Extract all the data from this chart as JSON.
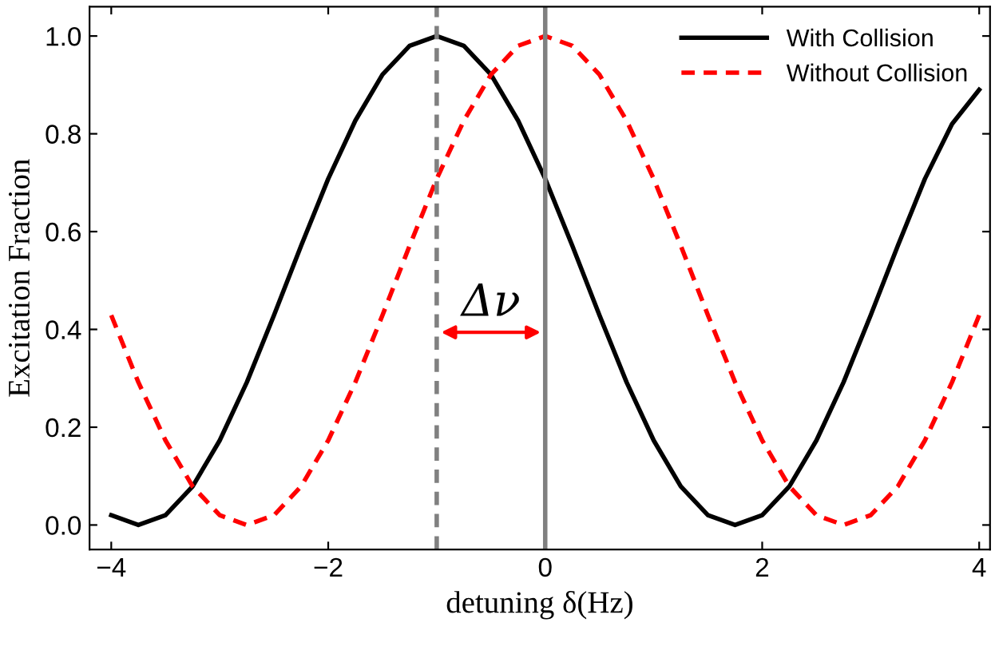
{
  "chart_data": {
    "type": "line",
    "xlabel": "detuning δ(Hz)",
    "ylabel": "Excitation Fraction",
    "xlim": [
      -4.2,
      4.1
    ],
    "ylim": [
      -0.05,
      1.06
    ],
    "xticks": [
      {
        "value": -4,
        "label": "−4"
      },
      {
        "value": -2,
        "label": "−2"
      },
      0,
      2,
      4
    ],
    "yticks": [
      {
        "value": 0,
        "label": "0.0"
      },
      {
        "value": 0.2,
        "label": "0.2"
      },
      {
        "value": 0.4,
        "label": "0.4"
      },
      {
        "value": 0.6,
        "label": "0.6"
      },
      {
        "value": 0.8,
        "label": "0.8"
      },
      {
        "value": 1,
        "label": "1.0"
      }
    ],
    "x": [
      -4,
      -3.75,
      -3.5,
      -3.25,
      -3,
      -2.75,
      -2.5,
      -2.25,
      -2,
      -1.75,
      -1.5,
      -1.25,
      -1,
      -0.75,
      -0.5,
      -0.25,
      0,
      0.25,
      0.5,
      0.75,
      1,
      1.25,
      1.5,
      1.75,
      2,
      2.25,
      2.5,
      2.75,
      3,
      3.25,
      3.5,
      3.75,
      4
    ],
    "series": [
      {
        "name": "With Collision",
        "color": "#000000",
        "line_style": "solid",
        "values": [
          0.02,
          0,
          0.02,
          0.079,
          0.173,
          0.292,
          0.429,
          0.571,
          0.708,
          0.827,
          0.921,
          0.98,
          1,
          0.98,
          0.921,
          0.827,
          0.708,
          0.571,
          0.429,
          0.292,
          0.173,
          0.079,
          0.02,
          0,
          0.02,
          0.079,
          0.173,
          0.292,
          0.429,
          0.571,
          0.708,
          0.82,
          0.89
        ]
      },
      {
        "name": "Without Collision",
        "color": "#ff0000",
        "line_style": "dashed",
        "values": [
          0.429,
          0.292,
          0.173,
          0.079,
          0.02,
          0,
          0.02,
          0.079,
          0.173,
          0.292,
          0.429,
          0.571,
          0.708,
          0.827,
          0.921,
          0.98,
          1,
          0.98,
          0.921,
          0.827,
          0.708,
          0.571,
          0.429,
          0.292,
          0.173,
          0.079,
          0.02,
          0,
          0.02,
          0.079,
          0.173,
          0.292,
          0.429
        ]
      }
    ],
    "ref_lines": [
      {
        "axis": "x",
        "value": -1,
        "color": "#808080",
        "line_style": "dashed"
      },
      {
        "axis": "x",
        "value": 0,
        "color": "#808080",
        "line_style": "solid"
      }
    ],
    "annotations": [
      "Δν"
    ],
    "legend": "top right",
    "grid": false,
    "marker": "none"
  }
}
